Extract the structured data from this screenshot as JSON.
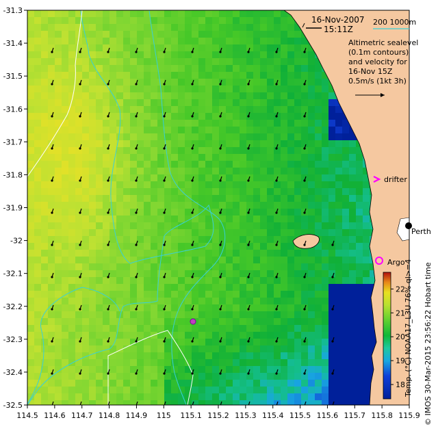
{
  "header": {
    "date": "16-Nov-2007",
    "time": "15:11Z",
    "bathy_label": "200  1000m"
  },
  "legend": {
    "line1": "Altimetric sealevel",
    "line2": "(0.1m contours)",
    "line3": "and velocity for",
    "line4": "16-Nov 15Z",
    "scale": "0.5m/s (1kt 3h)"
  },
  "places": {
    "drifter": "drifter",
    "perth": "Perth",
    "argo": "Argo"
  },
  "colorbar": {
    "label": "Temp. (°C) NOAA17_L3U 76% ql>=4",
    "ticks": [
      "22",
      "21",
      "20",
      "19",
      "18"
    ],
    "tick_values": [
      22,
      21,
      20,
      19,
      18
    ],
    "min": 17.4,
    "max": 22.7
  },
  "credit": "© IMOS 30-Mar-2015 23:56:22 Hobart time",
  "axes": {
    "x_ticks": [
      "114.5",
      "114.6",
      "114.7",
      "114.8",
      "114.9",
      "115",
      "115.1",
      "115.2",
      "115.3",
      "115.4",
      "115.5",
      "115.6",
      "115.7",
      "115.8",
      "115.9"
    ],
    "x_values": [
      114.5,
      114.6,
      114.7,
      114.8,
      114.9,
      115.0,
      115.1,
      115.2,
      115.3,
      115.4,
      115.5,
      115.6,
      115.7,
      115.8,
      115.9
    ],
    "y_ticks": [
      "-31.3",
      "-31.4",
      "-31.5",
      "-31.6",
      "-31.7",
      "-31.8",
      "-31.9",
      "-32",
      "-32.1",
      "-32.2",
      "-32.3",
      "-32.4",
      "-32.5"
    ],
    "y_values": [
      -31.3,
      -31.4,
      -31.5,
      -31.6,
      -31.7,
      -31.8,
      -31.9,
      -32.0,
      -32.1,
      -32.2,
      -32.3,
      -32.4,
      -32.5
    ],
    "xlim": [
      114.5,
      115.9
    ],
    "ylim": [
      -32.5,
      -31.3
    ]
  },
  "colors": {
    "land": "#f5c8a0",
    "cyan_contour": "#38d0d8",
    "white_contour": "#ffffff",
    "magenta": "#ff00ff"
  }
}
